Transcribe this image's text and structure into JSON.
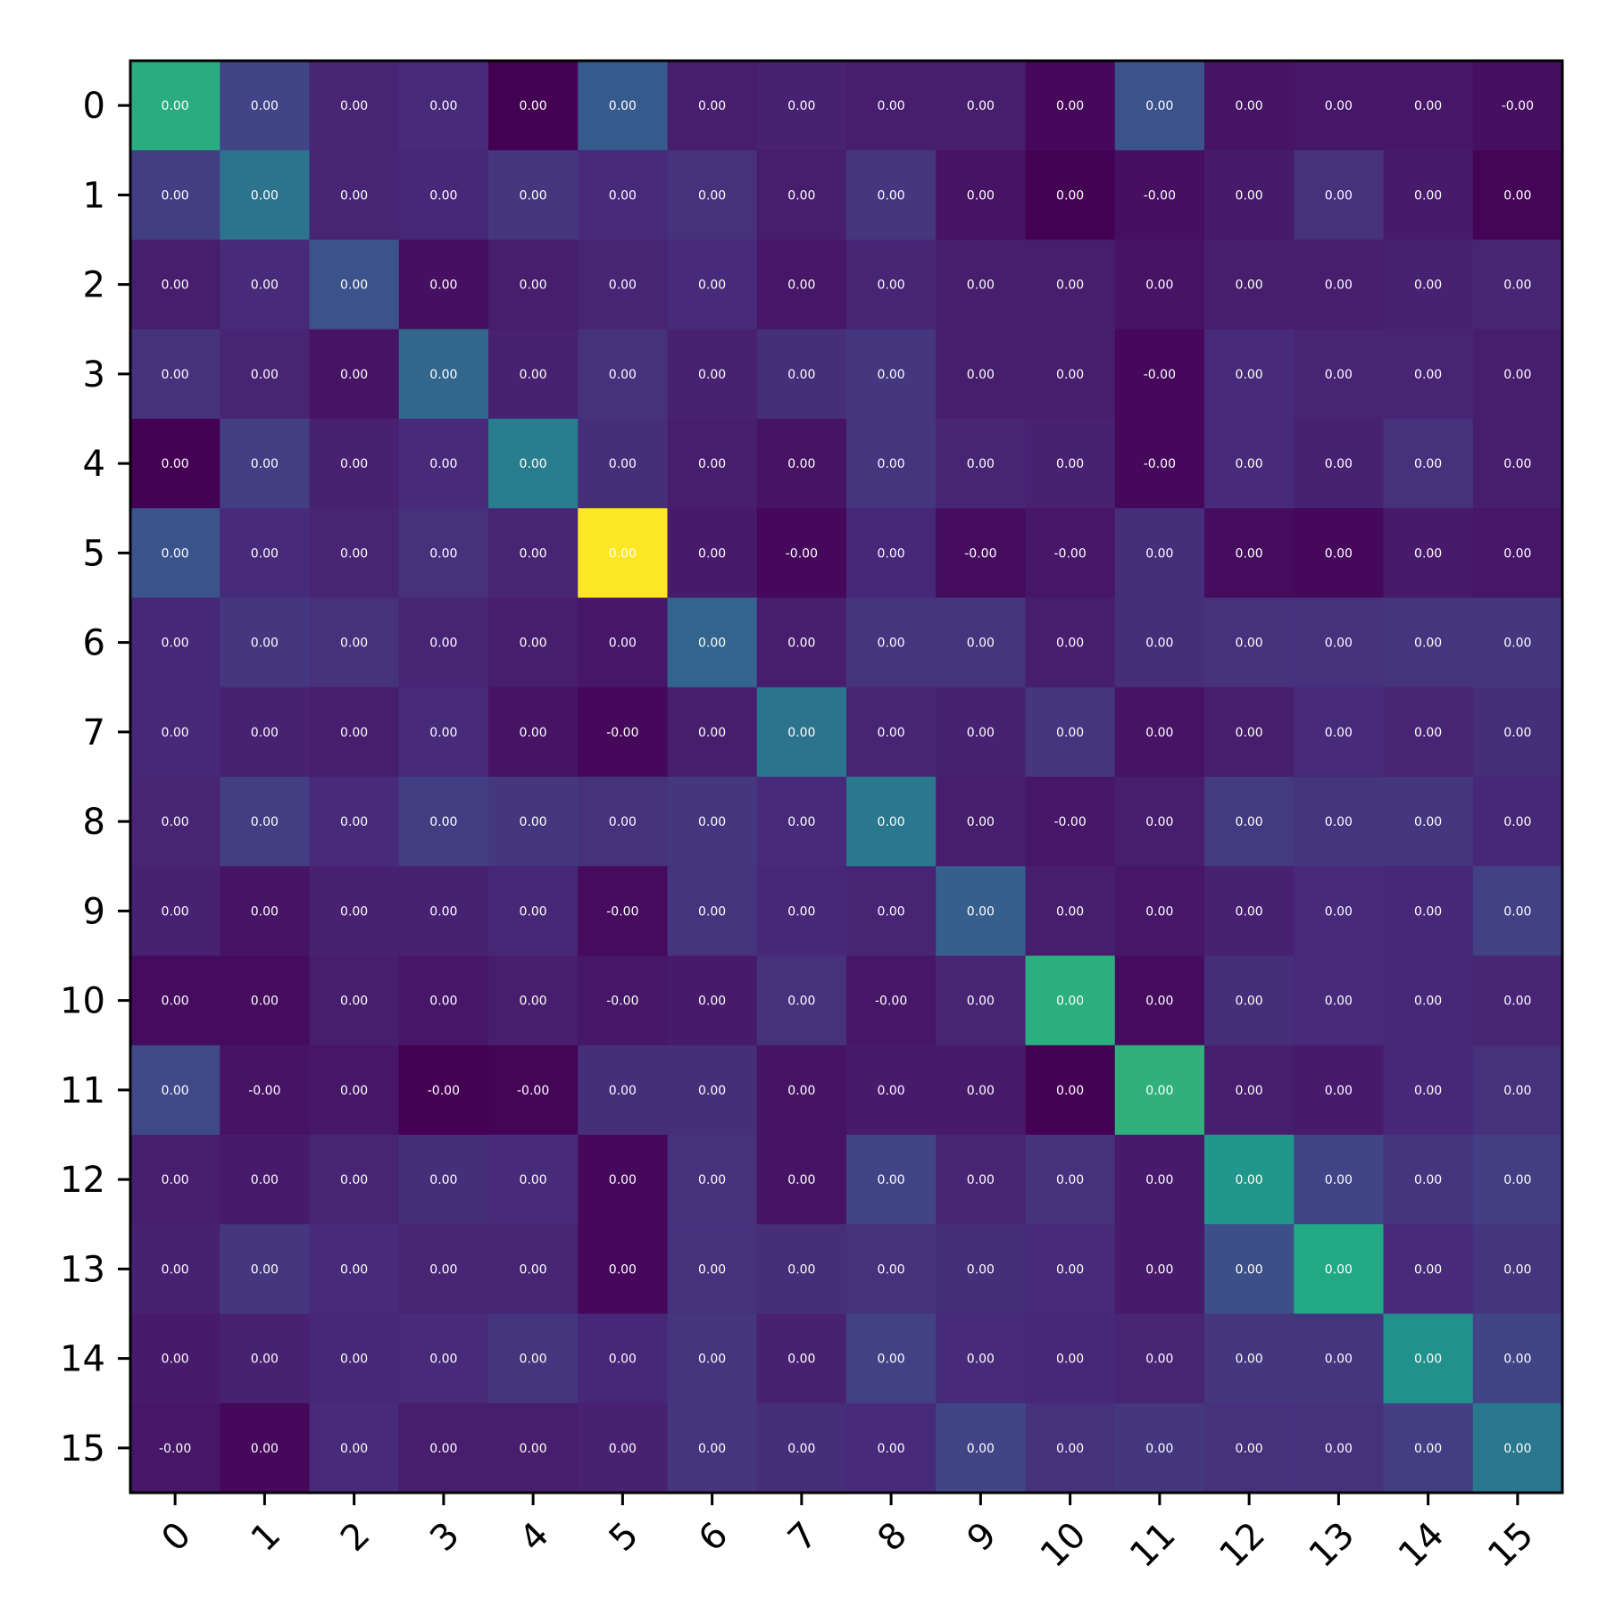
{
  "chart_data": {
    "type": "heatmap",
    "title": "",
    "xlabel": "",
    "ylabel": "",
    "colormap": "viridis",
    "grid": false,
    "colorbar": false,
    "x_categories": [
      "0",
      "1",
      "2",
      "3",
      "4",
      "5",
      "6",
      "7",
      "8",
      "9",
      "10",
      "11",
      "12",
      "13",
      "14",
      "15"
    ],
    "y_categories": [
      "0",
      "1",
      "2",
      "3",
      "4",
      "5",
      "6",
      "7",
      "8",
      "9",
      "10",
      "11",
      "12",
      "13",
      "14",
      "15"
    ],
    "color_range": [
      0,
      1
    ],
    "intensity": [
      [
        0.62,
        0.2,
        0.1,
        0.12,
        0.0,
        0.28,
        0.08,
        0.09,
        0.08,
        0.08,
        0.02,
        0.25,
        0.05,
        0.06,
        0.06,
        0.04
      ],
      [
        0.18,
        0.38,
        0.1,
        0.11,
        0.16,
        0.12,
        0.14,
        0.08,
        0.16,
        0.05,
        0.0,
        0.04,
        0.07,
        0.14,
        0.07,
        0.01
      ],
      [
        0.08,
        0.12,
        0.25,
        0.04,
        0.08,
        0.1,
        0.12,
        0.06,
        0.1,
        0.08,
        0.08,
        0.05,
        0.08,
        0.08,
        0.09,
        0.1
      ],
      [
        0.14,
        0.1,
        0.05,
        0.33,
        0.09,
        0.14,
        0.09,
        0.13,
        0.16,
        0.08,
        0.08,
        0.02,
        0.12,
        0.1,
        0.1,
        0.08
      ],
      [
        0.0,
        0.18,
        0.09,
        0.12,
        0.42,
        0.13,
        0.08,
        0.05,
        0.15,
        0.1,
        0.09,
        0.02,
        0.12,
        0.09,
        0.14,
        0.08
      ],
      [
        0.26,
        0.12,
        0.1,
        0.14,
        0.1,
        1.0,
        0.07,
        0.02,
        0.11,
        0.03,
        0.06,
        0.13,
        0.03,
        0.02,
        0.07,
        0.06
      ],
      [
        0.11,
        0.16,
        0.14,
        0.1,
        0.08,
        0.06,
        0.32,
        0.08,
        0.15,
        0.15,
        0.08,
        0.13,
        0.14,
        0.14,
        0.15,
        0.16
      ],
      [
        0.11,
        0.09,
        0.08,
        0.12,
        0.05,
        0.02,
        0.08,
        0.38,
        0.1,
        0.09,
        0.15,
        0.05,
        0.08,
        0.12,
        0.1,
        0.13
      ],
      [
        0.1,
        0.18,
        0.12,
        0.18,
        0.16,
        0.14,
        0.16,
        0.12,
        0.4,
        0.08,
        0.06,
        0.08,
        0.17,
        0.15,
        0.16,
        0.11
      ],
      [
        0.09,
        0.05,
        0.09,
        0.09,
        0.11,
        0.03,
        0.15,
        0.11,
        0.1,
        0.3,
        0.08,
        0.06,
        0.09,
        0.12,
        0.11,
        0.19
      ],
      [
        0.03,
        0.03,
        0.08,
        0.06,
        0.08,
        0.06,
        0.07,
        0.14,
        0.06,
        0.1,
        0.63,
        0.03,
        0.13,
        0.12,
        0.11,
        0.1
      ],
      [
        0.22,
        0.05,
        0.06,
        0.0,
        0.01,
        0.13,
        0.13,
        0.05,
        0.07,
        0.07,
        0.0,
        0.64,
        0.08,
        0.07,
        0.11,
        0.14
      ],
      [
        0.08,
        0.07,
        0.1,
        0.13,
        0.12,
        0.02,
        0.14,
        0.05,
        0.2,
        0.1,
        0.14,
        0.07,
        0.52,
        0.2,
        0.15,
        0.18
      ],
      [
        0.09,
        0.16,
        0.12,
        0.1,
        0.1,
        0.02,
        0.14,
        0.13,
        0.14,
        0.13,
        0.12,
        0.07,
        0.24,
        0.6,
        0.12,
        0.15
      ],
      [
        0.07,
        0.09,
        0.11,
        0.12,
        0.15,
        0.11,
        0.15,
        0.09,
        0.19,
        0.12,
        0.11,
        0.1,
        0.16,
        0.15,
        0.5,
        0.2
      ],
      [
        0.06,
        0.02,
        0.12,
        0.08,
        0.08,
        0.09,
        0.15,
        0.13,
        0.12,
        0.2,
        0.14,
        0.16,
        0.14,
        0.14,
        0.18,
        0.4
      ]
    ],
    "cell_text": [
      [
        "0.00",
        "0.00",
        "0.00",
        "0.00",
        "0.00",
        "0.00",
        "0.00",
        "0.00",
        "0.00",
        "0.00",
        "0.00",
        "0.00",
        "0.00",
        "0.00",
        "0.00",
        "-0.00"
      ],
      [
        "0.00",
        "0.00",
        "0.00",
        "0.00",
        "0.00",
        "0.00",
        "0.00",
        "0.00",
        "0.00",
        "0.00",
        "0.00",
        "-0.00",
        "0.00",
        "0.00",
        "0.00",
        "0.00"
      ],
      [
        "0.00",
        "0.00",
        "0.00",
        "0.00",
        "0.00",
        "0.00",
        "0.00",
        "0.00",
        "0.00",
        "0.00",
        "0.00",
        "0.00",
        "0.00",
        "0.00",
        "0.00",
        "0.00"
      ],
      [
        "0.00",
        "0.00",
        "0.00",
        "0.00",
        "0.00",
        "0.00",
        "0.00",
        "0.00",
        "0.00",
        "0.00",
        "0.00",
        "-0.00",
        "0.00",
        "0.00",
        "0.00",
        "0.00"
      ],
      [
        "0.00",
        "0.00",
        "0.00",
        "0.00",
        "0.00",
        "0.00",
        "0.00",
        "0.00",
        "0.00",
        "0.00",
        "0.00",
        "-0.00",
        "0.00",
        "0.00",
        "0.00",
        "0.00"
      ],
      [
        "0.00",
        "0.00",
        "0.00",
        "0.00",
        "0.00",
        "0.00",
        "0.00",
        "-0.00",
        "0.00",
        "-0.00",
        "-0.00",
        "0.00",
        "0.00",
        "0.00",
        "0.00",
        "0.00"
      ],
      [
        "0.00",
        "0.00",
        "0.00",
        "0.00",
        "0.00",
        "0.00",
        "0.00",
        "0.00",
        "0.00",
        "0.00",
        "0.00",
        "0.00",
        "0.00",
        "0.00",
        "0.00",
        "0.00"
      ],
      [
        "0.00",
        "0.00",
        "0.00",
        "0.00",
        "0.00",
        "-0.00",
        "0.00",
        "0.00",
        "0.00",
        "0.00",
        "0.00",
        "0.00",
        "0.00",
        "0.00",
        "0.00",
        "0.00"
      ],
      [
        "0.00",
        "0.00",
        "0.00",
        "0.00",
        "0.00",
        "0.00",
        "0.00",
        "0.00",
        "0.00",
        "0.00",
        "-0.00",
        "0.00",
        "0.00",
        "0.00",
        "0.00",
        "0.00"
      ],
      [
        "0.00",
        "0.00",
        "0.00",
        "0.00",
        "0.00",
        "-0.00",
        "0.00",
        "0.00",
        "0.00",
        "0.00",
        "0.00",
        "0.00",
        "0.00",
        "0.00",
        "0.00",
        "0.00"
      ],
      [
        "0.00",
        "0.00",
        "0.00",
        "0.00",
        "0.00",
        "-0.00",
        "0.00",
        "0.00",
        "-0.00",
        "0.00",
        "0.00",
        "0.00",
        "0.00",
        "0.00",
        "0.00",
        "0.00"
      ],
      [
        "0.00",
        "-0.00",
        "0.00",
        "-0.00",
        "-0.00",
        "0.00",
        "0.00",
        "0.00",
        "0.00",
        "0.00",
        "0.00",
        "0.00",
        "0.00",
        "0.00",
        "0.00",
        "0.00"
      ],
      [
        "0.00",
        "0.00",
        "0.00",
        "0.00",
        "0.00",
        "0.00",
        "0.00",
        "0.00",
        "0.00",
        "0.00",
        "0.00",
        "0.00",
        "0.00",
        "0.00",
        "0.00",
        "0.00"
      ],
      [
        "0.00",
        "0.00",
        "0.00",
        "0.00",
        "0.00",
        "0.00",
        "0.00",
        "0.00",
        "0.00",
        "0.00",
        "0.00",
        "0.00",
        "0.00",
        "0.00",
        "0.00",
        "0.00"
      ],
      [
        "0.00",
        "0.00",
        "0.00",
        "0.00",
        "0.00",
        "0.00",
        "0.00",
        "0.00",
        "0.00",
        "0.00",
        "0.00",
        "0.00",
        "0.00",
        "0.00",
        "0.00",
        "0.00"
      ],
      [
        "-0.00",
        "0.00",
        "0.00",
        "0.00",
        "0.00",
        "0.00",
        "0.00",
        "0.00",
        "0.00",
        "0.00",
        "0.00",
        "0.00",
        "0.00",
        "0.00",
        "0.00",
        "0.00"
      ]
    ]
  }
}
